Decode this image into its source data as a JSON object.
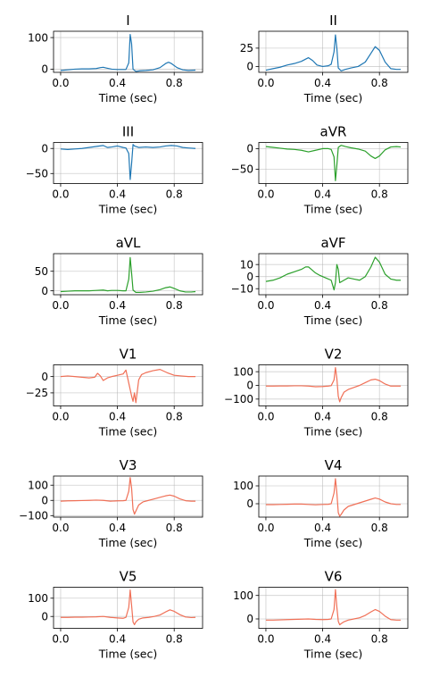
{
  "chart_data": [
    {
      "type": "line",
      "title": "I",
      "xlabel": "Time (sec)",
      "color": "#1f77b4",
      "xlim": [
        -0.05,
        1.0
      ],
      "ylim": [
        -10,
        120
      ],
      "xticks": [
        0.0,
        0.4,
        0.8
      ],
      "xtick_labels": [
        "0.0",
        "0.4",
        "0.8"
      ],
      "yticks": [
        0,
        100
      ],
      "ytick_labels": [
        "0",
        "100"
      ],
      "series": [
        {
          "x": [
            0.0,
            0.05,
            0.1,
            0.15,
            0.2,
            0.25,
            0.28,
            0.3,
            0.33,
            0.36,
            0.4,
            0.44,
            0.46,
            0.48,
            0.49,
            0.5,
            0.51,
            0.53,
            0.56,
            0.6,
            0.65,
            0.7,
            0.74,
            0.76,
            0.78,
            0.82,
            0.86,
            0.9,
            0.95
          ],
          "y": [
            -4,
            -2,
            0,
            1,
            1,
            2,
            5,
            6,
            3,
            0,
            -1,
            -1,
            -1,
            20,
            110,
            80,
            0,
            -7,
            -5,
            -4,
            -2,
            5,
            18,
            22,
            18,
            5,
            -2,
            -4,
            -3
          ]
        }
      ]
    },
    {
      "type": "line",
      "title": "II",
      "xlabel": "Time (sec)",
      "color": "#1f77b4",
      "xlim": [
        -0.05,
        1.0
      ],
      "ylim": [
        -8,
        48
      ],
      "xticks": [
        0.0,
        0.4,
        0.8
      ],
      "xtick_labels": [
        "0.0",
        "0.4",
        "0.8"
      ],
      "yticks": [
        0,
        25
      ],
      "ytick_labels": [
        "0",
        "25"
      ],
      "series": [
        {
          "x": [
            0.0,
            0.05,
            0.1,
            0.15,
            0.2,
            0.25,
            0.28,
            0.3,
            0.33,
            0.36,
            0.4,
            0.44,
            0.46,
            0.48,
            0.49,
            0.5,
            0.51,
            0.53,
            0.56,
            0.6,
            0.65,
            0.7,
            0.74,
            0.77,
            0.8,
            0.84,
            0.88,
            0.92,
            0.95
          ],
          "y": [
            -5,
            -3,
            -1,
            2,
            4,
            7,
            10,
            12,
            8,
            2,
            0,
            1,
            3,
            20,
            43,
            25,
            -2,
            -6,
            -4,
            -2,
            0,
            6,
            18,
            27,
            22,
            6,
            -3,
            -4,
            -4
          ]
        }
      ]
    },
    {
      "type": "line",
      "title": "III",
      "xlabel": "Time (sec)",
      "color": "#1f77b4",
      "xlim": [
        -0.05,
        1.0
      ],
      "ylim": [
        -70,
        12
      ],
      "xticks": [
        0.0,
        0.4,
        0.8
      ],
      "xtick_labels": [
        "0.0",
        "0.4",
        "0.8"
      ],
      "yticks": [
        0,
        -50
      ],
      "ytick_labels": [
        "0",
        "−50"
      ],
      "series": [
        {
          "x": [
            0.0,
            0.05,
            0.1,
            0.15,
            0.2,
            0.25,
            0.3,
            0.33,
            0.36,
            0.4,
            0.44,
            0.46,
            0.48,
            0.49,
            0.5,
            0.51,
            0.52,
            0.55,
            0.6,
            0.65,
            0.7,
            0.74,
            0.78,
            0.82,
            0.86,
            0.9,
            0.95
          ],
          "y": [
            -1,
            -2,
            -1,
            0,
            2,
            4,
            6,
            2,
            3,
            5,
            2,
            1,
            -10,
            -62,
            -30,
            8,
            5,
            2,
            3,
            2,
            3,
            5,
            6,
            5,
            2,
            1,
            0
          ]
        }
      ]
    },
    {
      "type": "line",
      "title": "aVR",
      "xlabel": "Time (sec)",
      "color": "#2ca02c",
      "xlim": [
        -0.05,
        1.0
      ],
      "ylim": [
        -85,
        15
      ],
      "xticks": [
        0.0,
        0.4,
        0.8
      ],
      "xtick_labels": [
        "0.0",
        "0.4",
        "0.8"
      ],
      "yticks": [
        0,
        -50
      ],
      "ytick_labels": [
        "0",
        "−50"
      ],
      "series": [
        {
          "x": [
            0.0,
            0.05,
            0.1,
            0.15,
            0.2,
            0.25,
            0.3,
            0.35,
            0.4,
            0.44,
            0.46,
            0.48,
            0.49,
            0.5,
            0.51,
            0.53,
            0.56,
            0.6,
            0.65,
            0.7,
            0.74,
            0.77,
            0.8,
            0.84,
            0.88,
            0.92,
            0.95
          ],
          "y": [
            5,
            3,
            1,
            -1,
            -2,
            -4,
            -8,
            -4,
            0,
            0,
            -2,
            -20,
            -78,
            -40,
            3,
            8,
            5,
            2,
            -1,
            -6,
            -18,
            -24,
            -18,
            -3,
            4,
            5,
            4
          ]
        }
      ]
    },
    {
      "type": "line",
      "title": "aVL",
      "xlabel": "Time (sec)",
      "color": "#2ca02c",
      "xlim": [
        -0.05,
        1.0
      ],
      "ylim": [
        -10,
        95
      ],
      "xticks": [
        0.0,
        0.4,
        0.8
      ],
      "xtick_labels": [
        "0.0",
        "0.4",
        "0.8"
      ],
      "yticks": [
        0,
        50
      ],
      "ytick_labels": [
        "0",
        "50"
      ],
      "series": [
        {
          "x": [
            0.0,
            0.05,
            0.1,
            0.15,
            0.2,
            0.25,
            0.3,
            0.33,
            0.36,
            0.4,
            0.44,
            0.46,
            0.48,
            0.49,
            0.5,
            0.51,
            0.53,
            0.56,
            0.6,
            0.65,
            0.7,
            0.74,
            0.77,
            0.8,
            0.84,
            0.88,
            0.92,
            0.95
          ],
          "y": [
            -2,
            -1,
            0,
            0,
            0,
            1,
            2,
            0,
            1,
            1,
            0,
            0,
            30,
            85,
            45,
            2,
            -4,
            -4,
            -3,
            -1,
            3,
            8,
            10,
            6,
            0,
            -3,
            -3,
            -2
          ]
        }
      ]
    },
    {
      "type": "line",
      "title": "aVF",
      "xlabel": "Time (sec)",
      "color": "#2ca02c",
      "xlim": [
        -0.05,
        1.0
      ],
      "ylim": [
        -15,
        19
      ],
      "xticks": [
        0.0,
        0.4,
        0.8
      ],
      "xtick_labels": [
        "0.0",
        "0.4",
        "0.8"
      ],
      "yticks": [
        10,
        0,
        -10
      ],
      "ytick_labels": [
        "10",
        "0",
        "−10"
      ],
      "series": [
        {
          "x": [
            0.0,
            0.05,
            0.1,
            0.15,
            0.2,
            0.25,
            0.28,
            0.3,
            0.32,
            0.35,
            0.38,
            0.42,
            0.46,
            0.48,
            0.49,
            0.5,
            0.51,
            0.52,
            0.55,
            0.58,
            0.62,
            0.66,
            0.7,
            0.74,
            0.77,
            0.8,
            0.84,
            0.88,
            0.92,
            0.95
          ],
          "y": [
            -4,
            -3,
            -1,
            2,
            4,
            6,
            8,
            8,
            6,
            3,
            1,
            -1,
            -3,
            -11,
            -5,
            10,
            6,
            -5,
            -3,
            -1,
            -2,
            -3,
            0,
            8,
            16,
            12,
            2,
            -2,
            -3,
            -3
          ]
        }
      ]
    },
    {
      "type": "line",
      "title": "V1",
      "xlabel": "Time (sec)",
      "color": "#f07057",
      "xlim": [
        -0.05,
        1.0
      ],
      "ylim": [
        -45,
        18
      ],
      "xticks": [
        0.0,
        0.4,
        0.8
      ],
      "xtick_labels": [
        "0.0",
        "0.4",
        "0.8"
      ],
      "yticks": [
        0,
        -25
      ],
      "ytick_labels": [
        "0",
        "−25"
      ],
      "series": [
        {
          "x": [
            0.0,
            0.05,
            0.1,
            0.15,
            0.2,
            0.24,
            0.26,
            0.28,
            0.3,
            0.33,
            0.36,
            0.4,
            0.44,
            0.46,
            0.48,
            0.5,
            0.51,
            0.52,
            0.53,
            0.55,
            0.57,
            0.6,
            0.65,
            0.7,
            0.75,
            0.8,
            0.85,
            0.9,
            0.95
          ],
          "y": [
            0,
            1,
            0,
            -1,
            -2,
            -1,
            5,
            1,
            -6,
            -2,
            0,
            2,
            4,
            10,
            -10,
            -30,
            -38,
            -25,
            -40,
            -5,
            3,
            6,
            9,
            11,
            6,
            2,
            1,
            0,
            0
          ]
        }
      ]
    },
    {
      "type": "line",
      "title": "V2",
      "xlabel": "Time (sec)",
      "color": "#f07057",
      "xlim": [
        -0.05,
        1.0
      ],
      "ylim": [
        -150,
        150
      ],
      "xticks": [
        0.0,
        0.4,
        0.8
      ],
      "xtick_labels": [
        "0.0",
        "0.4",
        "0.8"
      ],
      "yticks": [
        100,
        0,
        -100
      ],
      "ytick_labels": [
        "100",
        "0",
        "−100"
      ],
      "series": [
        {
          "x": [
            0.0,
            0.05,
            0.1,
            0.15,
            0.2,
            0.25,
            0.3,
            0.35,
            0.4,
            0.44,
            0.46,
            0.48,
            0.49,
            0.5,
            0.51,
            0.52,
            0.53,
            0.55,
            0.58,
            0.62,
            0.66,
            0.7,
            0.74,
            0.77,
            0.8,
            0.84,
            0.88,
            0.92,
            0.95
          ],
          "y": [
            -5,
            -5,
            -4,
            -4,
            -3,
            -3,
            -5,
            -10,
            -8,
            -5,
            -2,
            40,
            130,
            50,
            -80,
            -120,
            -90,
            -50,
            -30,
            -15,
            0,
            20,
            40,
            45,
            35,
            10,
            -5,
            -5,
            -5
          ]
        }
      ]
    },
    {
      "type": "line",
      "title": "V3",
      "xlabel": "Time (sec)",
      "color": "#f07057",
      "xlim": [
        -0.05,
        1.0
      ],
      "ylim": [
        -110,
        160
      ],
      "xticks": [
        0.0,
        0.4,
        0.8
      ],
      "xtick_labels": [
        "0.0",
        "0.4",
        "0.8"
      ],
      "yticks": [
        100,
        0,
        -100
      ],
      "ytick_labels": [
        "100",
        "0",
        "−100"
      ],
      "series": [
        {
          "x": [
            0.0,
            0.05,
            0.1,
            0.15,
            0.2,
            0.25,
            0.3,
            0.35,
            0.4,
            0.44,
            0.46,
            0.48,
            0.49,
            0.5,
            0.51,
            0.52,
            0.53,
            0.55,
            0.58,
            0.62,
            0.66,
            0.7,
            0.74,
            0.77,
            0.8,
            0.84,
            0.88,
            0.92,
            0.95
          ],
          "y": [
            -5,
            -3,
            -2,
            -1,
            0,
            2,
            0,
            -5,
            -3,
            -2,
            0,
            60,
            150,
            80,
            -60,
            -90,
            -70,
            -30,
            -10,
            0,
            10,
            20,
            30,
            35,
            28,
            10,
            -2,
            -5,
            -5
          ]
        }
      ]
    },
    {
      "type": "line",
      "title": "V4",
      "xlabel": "Time (sec)",
      "color": "#f07057",
      "xlim": [
        -0.05,
        1.0
      ],
      "ylim": [
        -75,
        155
      ],
      "xticks": [
        0.0,
        0.4,
        0.8
      ],
      "xtick_labels": [
        "0.0",
        "0.4",
        "0.8"
      ],
      "yticks": [
        100,
        0
      ],
      "ytick_labels": [
        "100",
        "0"
      ],
      "series": [
        {
          "x": [
            0.0,
            0.05,
            0.1,
            0.15,
            0.2,
            0.25,
            0.3,
            0.35,
            0.4,
            0.44,
            0.46,
            0.48,
            0.49,
            0.5,
            0.51,
            0.52,
            0.53,
            0.55,
            0.58,
            0.62,
            0.66,
            0.7,
            0.74,
            0.77,
            0.8,
            0.84,
            0.88,
            0.92,
            0.95
          ],
          "y": [
            -5,
            -5,
            -4,
            -3,
            -2,
            -2,
            -4,
            -6,
            -4,
            -3,
            0,
            60,
            140,
            60,
            -50,
            -70,
            -60,
            -35,
            -15,
            -5,
            5,
            15,
            25,
            32,
            26,
            10,
            0,
            -4,
            -4
          ]
        }
      ]
    },
    {
      "type": "line",
      "title": "V5",
      "xlabel": "Time (sec)",
      "color": "#f07057",
      "xlim": [
        -0.05,
        1.0
      ],
      "ylim": [
        -65,
        160
      ],
      "xticks": [
        0.0,
        0.4,
        0.8
      ],
      "xtick_labels": [
        "0.0",
        "0.4",
        "0.8"
      ],
      "yticks": [
        100,
        0
      ],
      "ytick_labels": [
        "100",
        "0"
      ],
      "series": [
        {
          "x": [
            0.0,
            0.05,
            0.1,
            0.15,
            0.2,
            0.25,
            0.3,
            0.35,
            0.4,
            0.44,
            0.46,
            0.48,
            0.49,
            0.5,
            0.51,
            0.52,
            0.53,
            0.55,
            0.58,
            0.62,
            0.66,
            0.7,
            0.74,
            0.77,
            0.8,
            0.84,
            0.88,
            0.92,
            0.95
          ],
          "y": [
            -5,
            -5,
            -4,
            -4,
            -3,
            -2,
            0,
            -5,
            -8,
            -10,
            -5,
            50,
            145,
            60,
            -30,
            -45,
            -30,
            -15,
            -8,
            -5,
            0,
            8,
            25,
            36,
            28,
            10,
            -3,
            -6,
            -5
          ]
        }
      ]
    },
    {
      "type": "line",
      "title": "V6",
      "xlabel": "Time (sec)",
      "color": "#f07057",
      "xlim": [
        -0.05,
        1.0
      ],
      "ylim": [
        -40,
        135
      ],
      "xticks": [
        0.0,
        0.4,
        0.8
      ],
      "xtick_labels": [
        "0.0",
        "0.4",
        "0.8"
      ],
      "yticks": [
        100,
        0
      ],
      "ytick_labels": [
        "100",
        "0"
      ],
      "series": [
        {
          "x": [
            0.0,
            0.05,
            0.1,
            0.15,
            0.2,
            0.25,
            0.3,
            0.35,
            0.4,
            0.44,
            0.46,
            0.48,
            0.49,
            0.5,
            0.51,
            0.52,
            0.53,
            0.55,
            0.58,
            0.62,
            0.66,
            0.7,
            0.74,
            0.77,
            0.8,
            0.84,
            0.88,
            0.92,
            0.95
          ],
          "y": [
            -5,
            -5,
            -4,
            -3,
            -2,
            -1,
            0,
            -2,
            -3,
            -2,
            0,
            40,
            125,
            50,
            -10,
            -25,
            -20,
            -12,
            -5,
            0,
            5,
            15,
            30,
            40,
            32,
            12,
            -3,
            -5,
            -5
          ]
        }
      ]
    }
  ]
}
